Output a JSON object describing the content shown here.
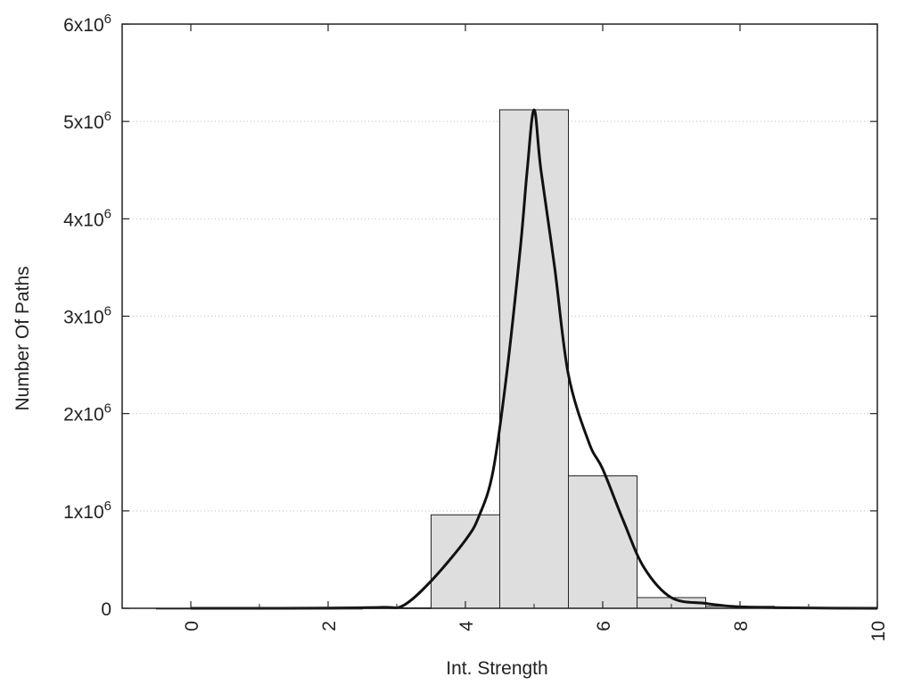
{
  "chart_data": {
    "type": "bar",
    "title": "",
    "xlabel": "Int. Strength",
    "ylabel": "Number Of Paths",
    "xlim": [
      -1,
      10
    ],
    "ylim": [
      0,
      6000000
    ],
    "grid": "horizontal dotted",
    "x_ticks": [
      "0",
      "2",
      "4",
      "6",
      "8",
      "10"
    ],
    "x_tick_values": [
      0,
      2,
      4,
      6,
      8,
      10
    ],
    "y_ticks": [
      {
        "value": 0,
        "mantissa": "0",
        "exp": ""
      },
      {
        "value": 1000000,
        "mantissa": "1x10",
        "exp": "6"
      },
      {
        "value": 2000000,
        "mantissa": "2x10",
        "exp": "6"
      },
      {
        "value": 3000000,
        "mantissa": "3x10",
        "exp": "6"
      },
      {
        "value": 4000000,
        "mantissa": "4x10",
        "exp": "6"
      },
      {
        "value": 5000000,
        "mantissa": "5x10",
        "exp": "6"
      },
      {
        "value": 6000000,
        "mantissa": "6x10",
        "exp": "6"
      }
    ],
    "bins": [
      {
        "x": 0,
        "value": 0
      },
      {
        "x": 1,
        "value": 0
      },
      {
        "x": 2,
        "value": 0
      },
      {
        "x": 3,
        "value": 5000
      },
      {
        "x": 4,
        "value": 960000
      },
      {
        "x": 5,
        "value": 5120000
      },
      {
        "x": 6,
        "value": 1360000
      },
      {
        "x": 7,
        "value": 110000
      },
      {
        "x": 8,
        "value": 20000
      },
      {
        "x": 9,
        "value": 5000
      }
    ],
    "bin_width": 1,
    "bar_color": "#dedede",
    "curve_color": "#111111",
    "fit_curve": [
      [
        0,
        0
      ],
      [
        1,
        0
      ],
      [
        2,
        2000
      ],
      [
        2.8,
        10000
      ],
      [
        3.1,
        30000
      ],
      [
        3.5,
        280000
      ],
      [
        4.0,
        700000
      ],
      [
        4.2,
        950000
      ],
      [
        4.4,
        1400000
      ],
      [
        4.6,
        2400000
      ],
      [
        4.8,
        3700000
      ],
      [
        4.9,
        4500000
      ],
      [
        5.0,
        5120000
      ],
      [
        5.1,
        4500000
      ],
      [
        5.3,
        3500000
      ],
      [
        5.5,
        2400000
      ],
      [
        5.8,
        1700000
      ],
      [
        6.0,
        1430000
      ],
      [
        6.3,
        900000
      ],
      [
        6.6,
        420000
      ],
      [
        7.0,
        110000
      ],
      [
        7.5,
        50000
      ],
      [
        8.0,
        15000
      ],
      [
        9.0,
        3000
      ],
      [
        10.0,
        0
      ]
    ]
  }
}
